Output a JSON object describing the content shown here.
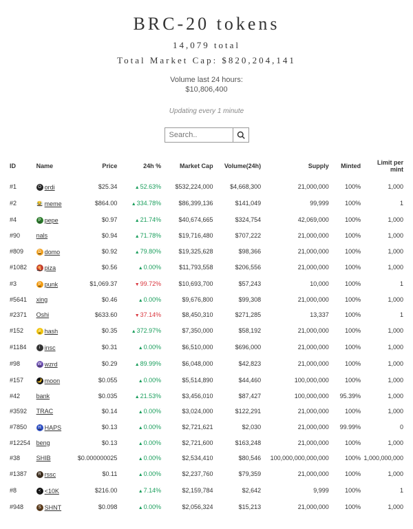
{
  "header": {
    "title": "BRC-20 tokens",
    "total": "14,079 total",
    "marketCap": "Total Market Cap: $820,204,141",
    "volumeLabel": "Volume last 24 hours:",
    "volumeValue": "$10,806,400",
    "updating": "Updating every 1 minute"
  },
  "search": {
    "placeholder": "Search.."
  },
  "columns": [
    "ID",
    "Name",
    "Price",
    "24h %",
    "Market Cap",
    "Volume(24h)",
    "Supply",
    "Minted",
    "Limit per mint"
  ],
  "rows": [
    {
      "id": "#1",
      "name": "ordi",
      "iconBg": "#222",
      "iconTxt": "O",
      "price": "$25.34",
      "pct": "52.63%",
      "dir": "up",
      "mcap": "$532,224,000",
      "vol": "$4,668,300",
      "supply": "21,000,000",
      "minted": "100%",
      "limit": "1,000"
    },
    {
      "id": "#2",
      "name": "meme",
      "iconBg": "#eee",
      "iconTxt": "😂",
      "price": "$864.00",
      "pct": "334.78%",
      "dir": "up",
      "mcap": "$86,399,136",
      "vol": "$141,049",
      "supply": "99,999",
      "minted": "100%",
      "limit": "1"
    },
    {
      "id": "#4",
      "name": "pepe",
      "iconBg": "#2a7a2a",
      "iconTxt": "P",
      "price": "$0.97",
      "pct": "21.74%",
      "dir": "up",
      "mcap": "$40,674,665",
      "vol": "$324,754",
      "supply": "42,069,000",
      "minted": "100%",
      "limit": "1,000"
    },
    {
      "id": "#90",
      "name": "nals",
      "iconBg": "transparent",
      "iconTxt": "",
      "price": "$0.94",
      "pct": "71.78%",
      "dir": "up",
      "mcap": "$19,716,480",
      "vol": "$707,222",
      "supply": "21,000,000",
      "minted": "100%",
      "limit": "1,000"
    },
    {
      "id": "#809",
      "name": "domo",
      "iconBg": "#f0a020",
      "iconTxt": "D",
      "price": "$0.92",
      "pct": "79.80%",
      "dir": "up",
      "mcap": "$19,325,628",
      "vol": "$98,366",
      "supply": "21,000,000",
      "minted": "100%",
      "limit": "1,000"
    },
    {
      "id": "#1082",
      "name": "piza",
      "iconBg": "#c0392b",
      "iconTxt": "🍕",
      "price": "$0.56",
      "pct": "0.00%",
      "dir": "flat",
      "mcap": "$11,793,558",
      "vol": "$206,556",
      "supply": "21,000,000",
      "minted": "100%",
      "limit": "1,000"
    },
    {
      "id": "#3",
      "name": "punk",
      "iconBg": "#f39c12",
      "iconTxt": "P",
      "price": "$1,069.37",
      "pct": "99.72%",
      "dir": "down",
      "mcap": "$10,693,700",
      "vol": "$57,243",
      "supply": "10,000",
      "minted": "100%",
      "limit": "1"
    },
    {
      "id": "#5641",
      "name": "xing",
      "iconBg": "transparent",
      "iconTxt": "",
      "price": "$0.46",
      "pct": "0.00%",
      "dir": "flat",
      "mcap": "$9,676,800",
      "vol": "$99,308",
      "supply": "21,000,000",
      "minted": "100%",
      "limit": "1,000"
    },
    {
      "id": "#2371",
      "name": "Oshi",
      "iconBg": "transparent",
      "iconTxt": "",
      "price": "$633.60",
      "pct": "37.14%",
      "dir": "down",
      "mcap": "$8,450,310",
      "vol": "$271,285",
      "supply": "13,337",
      "minted": "100%",
      "limit": "1"
    },
    {
      "id": "#152",
      "name": "hash",
      "iconBg": "#f1c40f",
      "iconTxt": "#",
      "price": "$0.35",
      "pct": "372.97%",
      "dir": "up",
      "mcap": "$7,350,000",
      "vol": "$58,192",
      "supply": "21,000,000",
      "minted": "100%",
      "limit": "1,000"
    },
    {
      "id": "#1184",
      "name": "insc",
      "iconBg": "#333",
      "iconTxt": "i",
      "price": "$0.31",
      "pct": "0.00%",
      "dir": "flat",
      "mcap": "$6,510,000",
      "vol": "$696,000",
      "supply": "21,000,000",
      "minted": "100%",
      "limit": "1,000"
    },
    {
      "id": "#98",
      "name": "wzrd",
      "iconBg": "#6a4caf",
      "iconTxt": "W",
      "price": "$0.29",
      "pct": "89.99%",
      "dir": "up",
      "mcap": "$6,048,000",
      "vol": "$42,823",
      "supply": "21,000,000",
      "minted": "100%",
      "limit": "1,000"
    },
    {
      "id": "#157",
      "name": "moon",
      "iconBg": "#111",
      "iconTxt": "🌙",
      "price": "$0.055",
      "pct": "0.00%",
      "dir": "flat",
      "mcap": "$5,514,890",
      "vol": "$44,460",
      "supply": "100,000,000",
      "minted": "100%",
      "limit": "1,000"
    },
    {
      "id": "#42",
      "name": "bank",
      "iconBg": "transparent",
      "iconTxt": "",
      "price": "$0.035",
      "pct": "21.53%",
      "dir": "up",
      "mcap": "$3,456,010",
      "vol": "$87,427",
      "supply": "100,000,000",
      "minted": "95.39%",
      "limit": "1,000"
    },
    {
      "id": "#3592",
      "name": "TRAC",
      "iconBg": "transparent",
      "iconTxt": "",
      "price": "$0.14",
      "pct": "0.00%",
      "dir": "flat",
      "mcap": "$3,024,000",
      "vol": "$122,291",
      "supply": "21,000,000",
      "minted": "100%",
      "limit": "1,000"
    },
    {
      "id": "#7850",
      "name": "HAPS",
      "iconBg": "#2b4cc0",
      "iconTxt": "H",
      "price": "$0.13",
      "pct": "0.00%",
      "dir": "flat",
      "mcap": "$2,721,621",
      "vol": "$2,030",
      "supply": "21,000,000",
      "minted": "99.99%",
      "limit": "0"
    },
    {
      "id": "#12254",
      "name": "beng",
      "iconBg": "transparent",
      "iconTxt": "",
      "price": "$0.13",
      "pct": "0.00%",
      "dir": "flat",
      "mcap": "$2,721,600",
      "vol": "$163,248",
      "supply": "21,000,000",
      "minted": "100%",
      "limit": "1,000"
    },
    {
      "id": "#38",
      "name": "SHIB",
      "iconBg": "transparent",
      "iconTxt": "",
      "price": "$0.000000025",
      "pct": "0.00%",
      "dir": "flat",
      "mcap": "$2,534,410",
      "vol": "$80,546",
      "supply": "100,000,000,000,000",
      "minted": "100%",
      "limit": "1,000,000,000"
    },
    {
      "id": "#1387",
      "name": "rssc",
      "iconBg": "#3a2a1a",
      "iconTxt": "R",
      "price": "$0.11",
      "pct": "0.00%",
      "dir": "flat",
      "mcap": "$2,237,760",
      "vol": "$79,359",
      "supply": "21,000,000",
      "minted": "100%",
      "limit": "1,000"
    },
    {
      "id": "#8",
      "name": "<10K",
      "iconBg": "#111",
      "iconTxt": "<",
      "price": "$216.00",
      "pct": "7.14%",
      "dir": "up",
      "mcap": "$2,159,784",
      "vol": "$2,642",
      "supply": "9,999",
      "minted": "100%",
      "limit": "1"
    },
    {
      "id": "#948",
      "name": "SHNT",
      "iconBg": "#5a3a1a",
      "iconTxt": "S",
      "price": "$0.098",
      "pct": "0.00%",
      "dir": "flat",
      "mcap": "$2,056,324",
      "vol": "$15,213",
      "supply": "21,000,000",
      "minted": "100%",
      "limit": "1,000"
    }
  ]
}
